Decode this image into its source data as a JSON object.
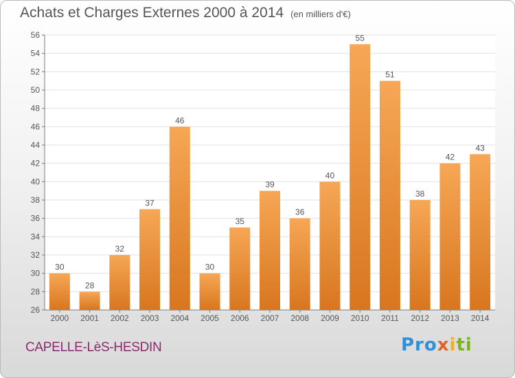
{
  "title": "Achats et Charges Externes 2000 à 2014",
  "subtitle": "(en milliers d'€)",
  "town": "CAPELLE-LèS-HESDIN",
  "logo": {
    "p1": "Pro",
    "p2": "x",
    "p3": "i",
    "p4": "ti"
  },
  "colors": {
    "bar_top": "#f6a755",
    "bar_bottom": "#d8761f",
    "grid": "#e1e1e1",
    "axis": "#7a7a7a"
  },
  "chart_data": {
    "type": "bar",
    "categories": [
      "2000",
      "2001",
      "2002",
      "2003",
      "2004",
      "2005",
      "2006",
      "2007",
      "2008",
      "2009",
      "2010",
      "2011",
      "2012",
      "2013",
      "2014"
    ],
    "values": [
      30,
      28,
      32,
      37,
      46,
      30,
      35,
      39,
      36,
      40,
      55,
      51,
      38,
      42,
      43
    ],
    "title": "Achats et Charges Externes 2000 à 2014",
    "unit": "(en milliers d'€)",
    "ylim": [
      26,
      56
    ],
    "yticks": [
      26,
      28,
      30,
      32,
      34,
      36,
      38,
      40,
      42,
      44,
      46,
      48,
      50,
      52,
      54,
      56
    ],
    "grid": true,
    "legend": "none"
  }
}
